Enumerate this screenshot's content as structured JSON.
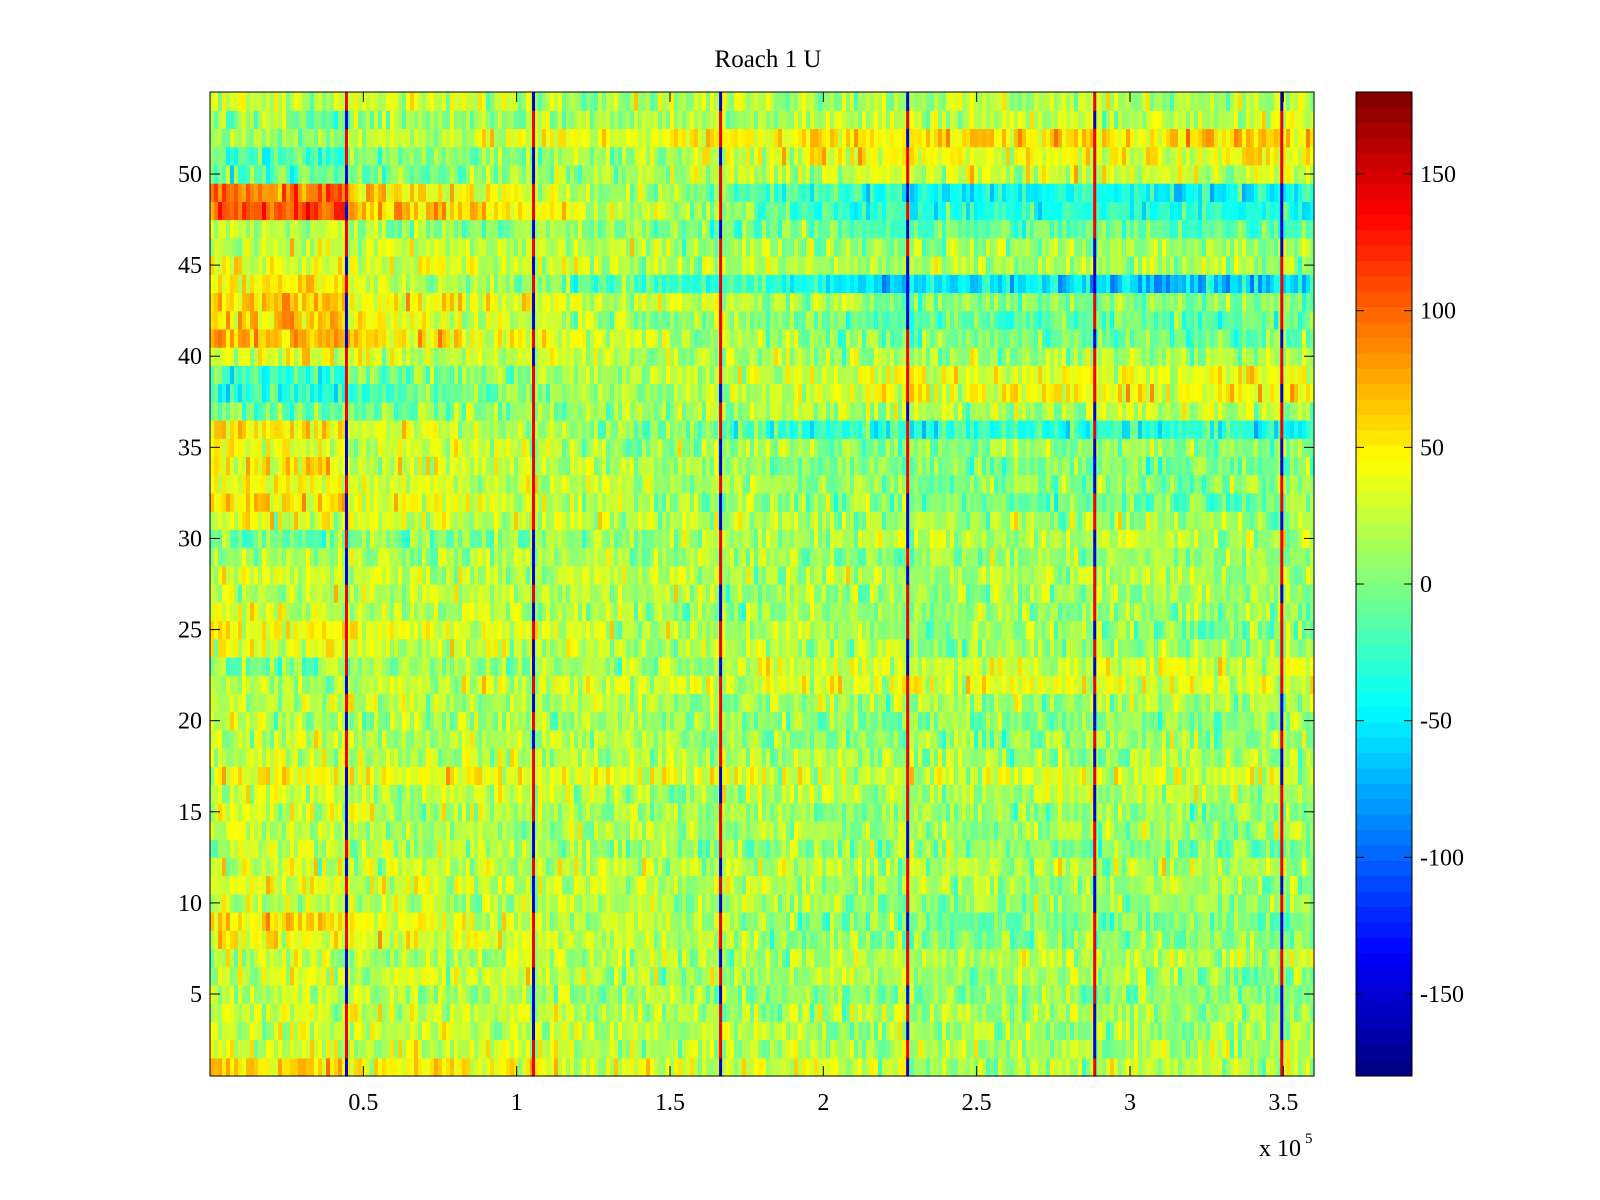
{
  "chart_data": {
    "type": "heatmap",
    "title": "Roach 1 U",
    "xlabel": "",
    "ylabel": "",
    "x_exponent_label": "x 10",
    "x_exponent_power": "5",
    "xlim": [
      0,
      360000
    ],
    "ylim": [
      0.5,
      54.5
    ],
    "n_rows": 54,
    "x_ticks": [
      0.5,
      1,
      1.5,
      2,
      2.5,
      3,
      3.5
    ],
    "x_tick_labels": [
      "0.5",
      "1",
      "1.5",
      "2",
      "2.5",
      "3",
      "3.5"
    ],
    "y_ticks": [
      5,
      10,
      15,
      20,
      25,
      30,
      35,
      40,
      45,
      50
    ],
    "y_tick_labels": [
      "5",
      "10",
      "15",
      "20",
      "25",
      "30",
      "35",
      "40",
      "45",
      "50"
    ],
    "colorbar": {
      "colormap": "jet",
      "clim": [
        -180,
        180
      ],
      "ticks": [
        150,
        100,
        50,
        0,
        -50,
        -100,
        -150
      ],
      "tick_labels": [
        "150",
        "100",
        "50",
        "0",
        "-50",
        "-100",
        "-150"
      ]
    },
    "segment_boundaries_x": [
      44500,
      105500,
      166500,
      227500,
      288500,
      349500
    ],
    "segments": [
      {
        "x_range": [
          0,
          44500
        ],
        "row_means_desc": "high values in rows 1, 8-9, 24-25, 31-36, 40-44, 47-49; low in rows 37-39"
      },
      {
        "x_range": [
          44500,
          105500
        ],
        "row_means_desc": "moderately high values"
      },
      {
        "x_range": [
          105500,
          166500
        ],
        "row_means_desc": "near zero / slightly positive"
      },
      {
        "x_range": [
          166500,
          227500
        ],
        "row_means_desc": "near zero"
      },
      {
        "x_range": [
          227500,
          288500
        ],
        "row_means_desc": "near zero, slightly negative"
      },
      {
        "x_range": [
          288500,
          360000
        ],
        "row_means_desc": "negative in rows 36, 44, 48-49; positive in rows 51-52"
      }
    ],
    "row_profile_left": [
      60,
      25,
      15,
      20,
      10,
      25,
      15,
      45,
      55,
      20,
      35,
      20,
      15,
      10,
      20,
      15,
      40,
      20,
      15,
      10,
      15,
      5,
      -20,
      30,
      50,
      25,
      15,
      20,
      10,
      -20,
      30,
      55,
      40,
      45,
      30,
      50,
      -20,
      -60,
      -40,
      30,
      80,
      60,
      70,
      55,
      40,
      20,
      10,
      130,
      110,
      -30,
      -40,
      0,
      -10,
      20
    ],
    "row_profile_right": [
      10,
      5,
      0,
      5,
      -10,
      0,
      5,
      -10,
      -20,
      -5,
      0,
      5,
      -10,
      0,
      -5,
      10,
      20,
      0,
      -5,
      -10,
      0,
      30,
      25,
      0,
      -5,
      -10,
      0,
      5,
      -5,
      10,
      0,
      -20,
      -10,
      -15,
      -5,
      -60,
      10,
      40,
      35,
      0,
      -20,
      -30,
      -10,
      -90,
      0,
      0,
      -30,
      -60,
      -70,
      20,
      40,
      60,
      15,
      10
    ]
  }
}
